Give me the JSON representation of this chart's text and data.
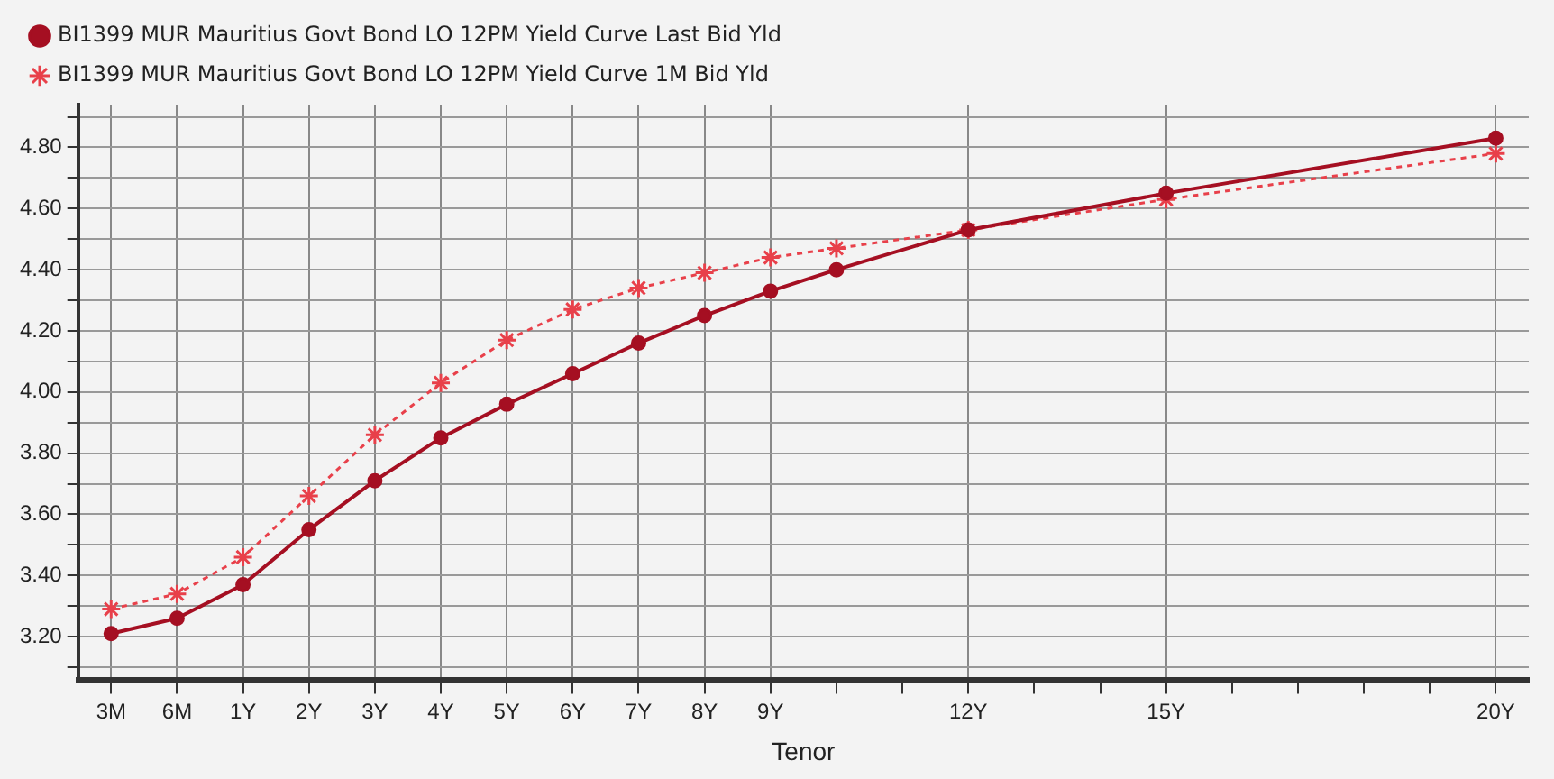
{
  "chart_data": {
    "type": "line",
    "xlabel": "Tenor",
    "categories": [
      "3M",
      "6M",
      "1Y",
      "2Y",
      "3Y",
      "4Y",
      "5Y",
      "6Y",
      "7Y",
      "8Y",
      "9Y",
      null,
      null,
      "12Y",
      null,
      null,
      "15Y",
      null,
      null,
      null,
      null,
      "20Y"
    ],
    "series": [
      {
        "name": "BI1399 MUR Mauritius Govt Bond LO 12PM Yield Curve Last Bid Yld",
        "color": "#a50f22",
        "marker": "circle",
        "line_style": "solid",
        "values": [
          3.21,
          3.26,
          3.37,
          3.55,
          3.71,
          3.85,
          3.96,
          4.06,
          4.16,
          4.25,
          4.33,
          4.4,
          null,
          4.53,
          null,
          null,
          4.65,
          null,
          null,
          null,
          null,
          4.83
        ]
      },
      {
        "name": "BI1399 MUR Mauritius Govt Bond LO 12PM Yield Curve 1M Bid Yld",
        "color": "#e8404a",
        "marker": "cross",
        "line_style": "dotted",
        "values": [
          3.29,
          3.34,
          3.46,
          3.66,
          3.86,
          4.03,
          4.17,
          4.27,
          4.34,
          4.39,
          4.44,
          4.47,
          null,
          4.53,
          null,
          null,
          4.63,
          null,
          null,
          null,
          null,
          4.78
        ]
      }
    ],
    "ylim": [
      3.06,
      4.94
    ],
    "yticks": [
      {
        "value": 3.1,
        "label": null
      },
      {
        "value": 3.2,
        "label": "3.20"
      },
      {
        "value": 3.3,
        "label": null
      },
      {
        "value": 3.4,
        "label": "3.40"
      },
      {
        "value": 3.5,
        "label": null
      },
      {
        "value": 3.6,
        "label": "3.60"
      },
      {
        "value": 3.7,
        "label": null
      },
      {
        "value": 3.8,
        "label": "3.80"
      },
      {
        "value": 3.9,
        "label": null
      },
      {
        "value": 4.0,
        "label": "4.00"
      },
      {
        "value": 4.1,
        "label": null
      },
      {
        "value": 4.2,
        "label": "4.20"
      },
      {
        "value": 4.3,
        "label": null
      },
      {
        "value": 4.4,
        "label": "4.40"
      },
      {
        "value": 4.5,
        "label": null
      },
      {
        "value": 4.6,
        "label": "4.60"
      },
      {
        "value": 4.7,
        "label": null
      },
      {
        "value": 4.8,
        "label": "4.80"
      },
      {
        "value": 4.9,
        "label": null
      }
    ],
    "grid": true,
    "legend": "top left"
  }
}
